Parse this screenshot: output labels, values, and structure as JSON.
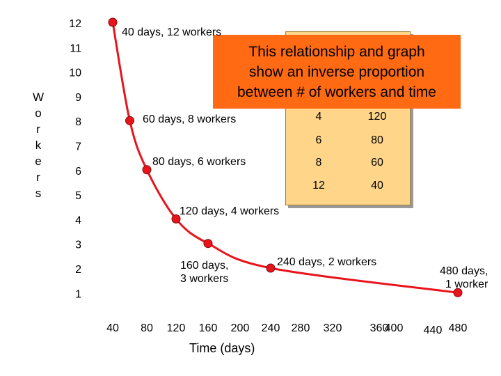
{
  "chart_data": {
    "type": "line",
    "xlabel": "Time (days)",
    "ylabel": "Workers",
    "x_ticks": [
      "40",
      "80",
      "120",
      "160",
      "200",
      "240",
      "280",
      "320",
      "360",
      "400",
      "440",
      "480"
    ],
    "y_ticks": [
      "12",
      "11",
      "10",
      "9",
      "8",
      "7",
      "6",
      "5",
      "4",
      "3",
      "2",
      "1"
    ],
    "xlim": [
      40,
      480
    ],
    "ylim": [
      1,
      12
    ],
    "grid": false,
    "series": [
      {
        "color": "#e8141c",
        "points": [
          {
            "x": 40,
            "y": 12
          },
          {
            "x": 60,
            "y": 8
          },
          {
            "x": 80,
            "y": 6
          },
          {
            "x": 120,
            "y": 4
          },
          {
            "x": 160,
            "y": 3
          },
          {
            "x": 240,
            "y": 2
          },
          {
            "x": 480,
            "y": 1
          }
        ]
      }
    ],
    "annotations": [
      {
        "text": "40 days, 12 workers"
      },
      {
        "text": "60 days, 8 workers"
      },
      {
        "text": "80 days, 6 workers"
      },
      {
        "text": "120 days, 4 workers"
      },
      {
        "text": "160 days,",
        "text2": "3 workers"
      },
      {
        "text": "240 days, 2 workers"
      },
      {
        "text": "480 days,",
        "text2": "1  worker"
      }
    ]
  },
  "table": {
    "rows": [
      [
        "4",
        "120"
      ],
      [
        "6",
        "80"
      ],
      [
        "8",
        "60"
      ],
      [
        "12",
        "40"
      ]
    ]
  },
  "callout": {
    "line1": "This relationship and graph",
    "line2": "show an inverse proportion",
    "line3": "between # of workers and time",
    "color": "#ff6a13"
  }
}
